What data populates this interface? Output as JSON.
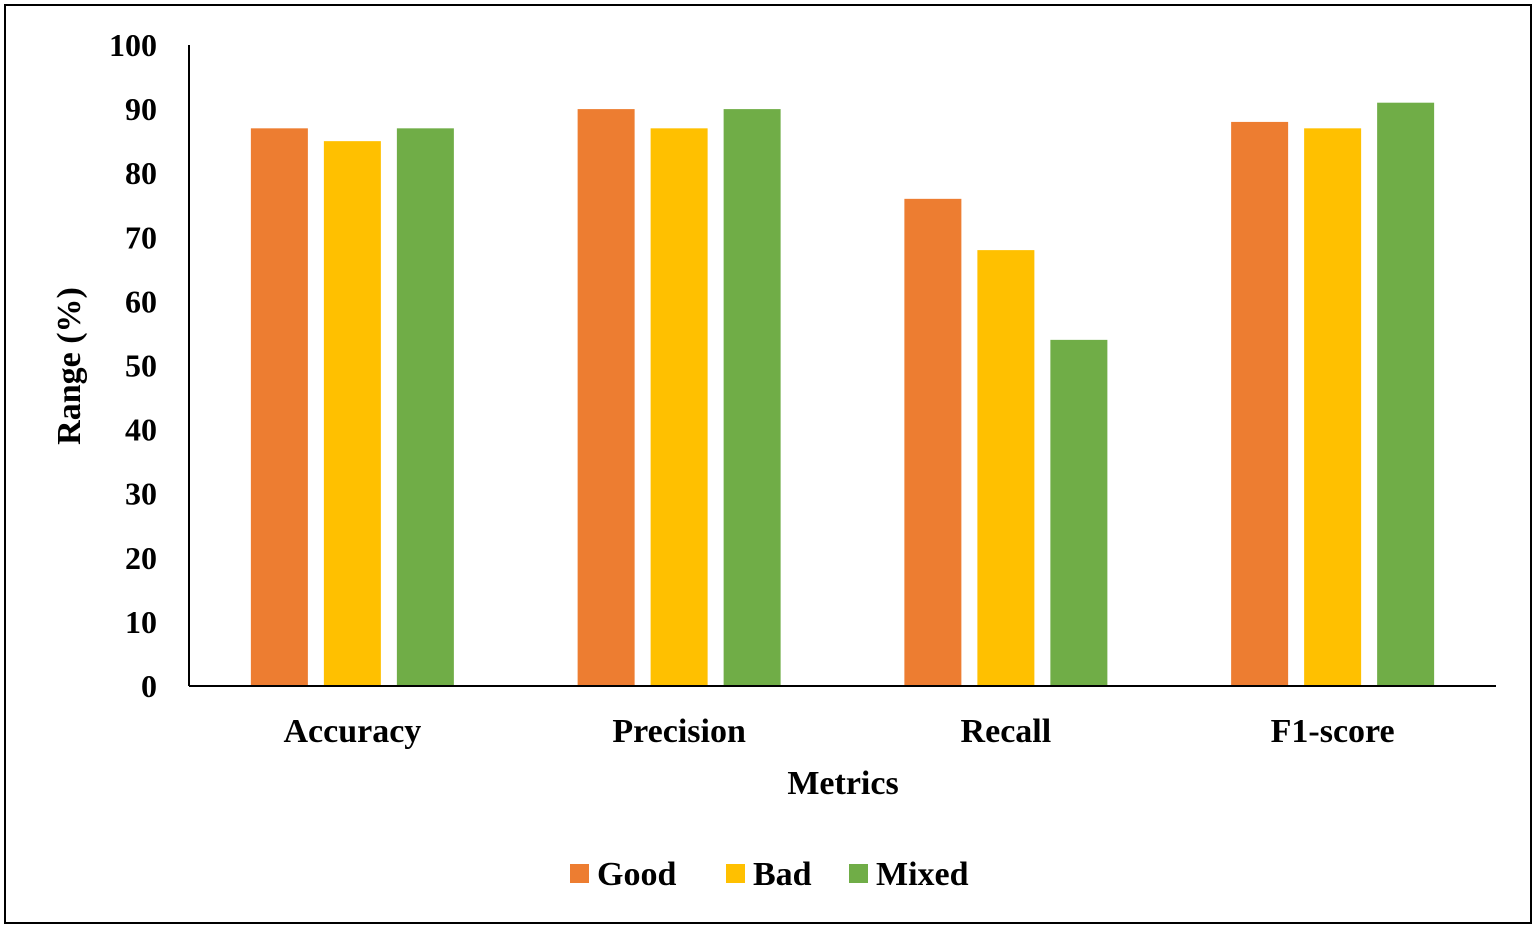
{
  "chart_data": {
    "type": "bar",
    "title": "",
    "xlabel": "Metrics",
    "ylabel": "Range (%)",
    "ylim": [
      0,
      100
    ],
    "yticks": [
      "0",
      "10",
      "20",
      "30",
      "40",
      "50",
      "60",
      "70",
      "80",
      "90",
      "100"
    ],
    "categories": [
      "Accuracy",
      "Precision",
      "Recall",
      "F1-score"
    ],
    "series": [
      {
        "name": "Good",
        "color": "#ED7D31",
        "values": [
          87,
          90,
          76,
          88
        ]
      },
      {
        "name": "Bad",
        "color": "#FFC000",
        "values": [
          85,
          87,
          68,
          87
        ]
      },
      {
        "name": "Mixed",
        "color": "#70AD47",
        "values": [
          87,
          90,
          54,
          91
        ]
      }
    ],
    "grid": false,
    "legend_position": "bottom"
  }
}
